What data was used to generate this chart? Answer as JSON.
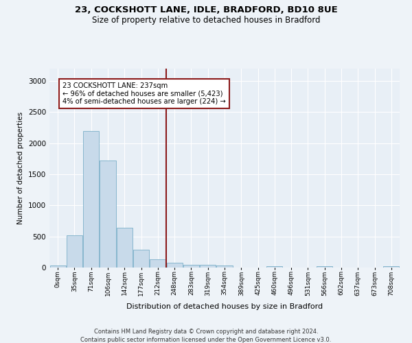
{
  "title1": "23, COCKSHOTT LANE, IDLE, BRADFORD, BD10 8UE",
  "title2": "Size of property relative to detached houses in Bradford",
  "xlabel": "Distribution of detached houses by size in Bradford",
  "ylabel": "Number of detached properties",
  "bar_color": "#c8daea",
  "bar_edge_color": "#7aafc8",
  "vline_color": "#8b1a1a",
  "vline_x": 6.5,
  "annotation_line1": "23 COCKSHOTT LANE: 237sqm",
  "annotation_line2": "← 96% of detached houses are smaller (5,423)",
  "annotation_line3": "4% of semi-detached houses are larger (224) →",
  "annotation_box_color": "#8b1a1a",
  "bins": [
    "0sqm",
    "35sqm",
    "71sqm",
    "106sqm",
    "142sqm",
    "177sqm",
    "212sqm",
    "248sqm",
    "283sqm",
    "319sqm",
    "354sqm",
    "389sqm",
    "425sqm",
    "460sqm",
    "496sqm",
    "531sqm",
    "566sqm",
    "602sqm",
    "637sqm",
    "673sqm",
    "708sqm"
  ],
  "values": [
    30,
    520,
    2200,
    1720,
    640,
    290,
    130,
    75,
    45,
    40,
    35,
    5,
    5,
    25,
    5,
    5,
    25,
    5,
    5,
    5,
    20
  ],
  "ylim": [
    0,
    3200
  ],
  "yticks": [
    0,
    500,
    1000,
    1500,
    2000,
    2500,
    3000
  ],
  "footer1": "Contains HM Land Registry data © Crown copyright and database right 2024.",
  "footer2": "Contains public sector information licensed under the Open Government Licence v3.0.",
  "bg_color": "#eef3f8",
  "plot_bg_color": "#e8eff6"
}
